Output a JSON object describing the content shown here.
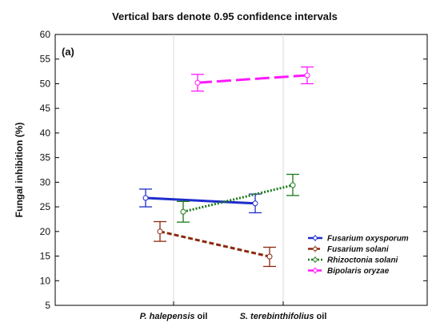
{
  "chart_data": {
    "type": "line",
    "title": "Vertical bars denote 0.95 confidence intervals",
    "panel_label": "(a)",
    "ylabel": "Fungal inhibition (%)",
    "xlabel": "",
    "ylim": [
      5,
      60
    ],
    "yticks": [
      "5",
      "10",
      "15",
      "20",
      "25",
      "30",
      "35",
      "40",
      "45",
      "50",
      "55",
      "60"
    ],
    "categories": [
      {
        "italic": "P. halepensis",
        "plain": " oil"
      },
      {
        "italic": "S. terebinthifolius",
        "plain": " oil"
      }
    ],
    "grid": true,
    "legend_position": "bottom-right",
    "series": [
      {
        "name": "Fusarium oxysporum",
        "color": "#1f2dcc",
        "dash": "solid",
        "values": [
          26.8,
          25.7
        ],
        "ci_low": [
          25.0,
          23.8
        ],
        "ci_high": [
          28.6,
          27.6
        ]
      },
      {
        "name": "Fusarium solani",
        "color": "#8b2a0e",
        "dash": "dashed",
        "values": [
          20.0,
          14.9
        ],
        "ci_low": [
          18.0,
          12.9
        ],
        "ci_high": [
          22.0,
          16.8
        ]
      },
      {
        "name": "Rhizoctonia solani",
        "color": "#1a7a1a",
        "dash": "dotted",
        "values": [
          24.0,
          29.4
        ],
        "ci_low": [
          21.9,
          27.3
        ],
        "ci_high": [
          26.1,
          31.6
        ]
      },
      {
        "name": "Bipolaris oryzae",
        "color": "#ff19ff",
        "dash": "longdash",
        "values": [
          50.2,
          51.7
        ],
        "ci_low": [
          48.5,
          50.0
        ],
        "ci_high": [
          51.9,
          53.4
        ]
      }
    ]
  }
}
